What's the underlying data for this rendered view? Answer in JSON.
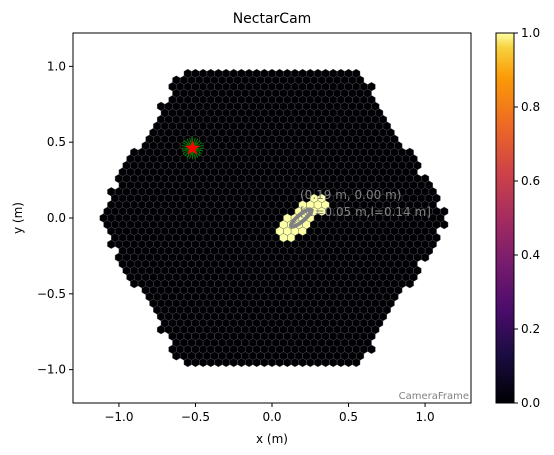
{
  "chart_data": [
    {
      "type": "heatmap",
      "title": "NectarCam",
      "xlabel": "x  (m)",
      "ylabel": "y  (m)",
      "xlim": [
        -1.3,
        1.3
      ],
      "ylim": [
        -1.22,
        1.22
      ],
      "xticks": [
        {
          "value": -1.0,
          "label": "−1.0"
        },
        {
          "value": -0.5,
          "label": "−0.5"
        },
        {
          "value": 0.0,
          "label": "0.0"
        },
        {
          "value": 0.5,
          "label": "0.5"
        },
        {
          "value": 1.0,
          "label": "1.0"
        }
      ],
      "yticks": [
        {
          "value": -1.0,
          "label": "−1.0"
        },
        {
          "value": -0.5,
          "label": "−0.5"
        },
        {
          "value": 0.0,
          "label": "0.0"
        },
        {
          "value": 0.5,
          "label": "0.5"
        },
        {
          "value": 1.0,
          "label": "1.0"
        }
      ],
      "camera": {
        "shape": "hexagonal pixel array",
        "outer_radius_m": 1.15,
        "pixel_pitch_m": 0.05,
        "background_value": 0.0,
        "signal_value": 1.0,
        "signal_region": {
          "center_m": [
            0.19,
            0.0
          ],
          "length_m": 0.14,
          "width_m": 0.05,
          "angle_deg": 40
        }
      },
      "hillas_ellipse": {
        "center_m": [
          0.19,
          0.0
        ],
        "width_m": 0.05,
        "length_m": 0.14,
        "angle_deg": 40,
        "color": "#808080"
      },
      "annotation_lines": [
        "(0.19 m, 0.00 m)",
        "[w=0.05 m,l=0.14 m]"
      ],
      "markers": [
        {
          "name": "star",
          "x": -0.52,
          "y": 0.46,
          "color": "#ff0000"
        },
        {
          "name": "green burst",
          "x": -0.52,
          "y": 0.46,
          "color": "#008000"
        }
      ],
      "frame_label": "CameraFrame",
      "grid": false,
      "colorbar": {
        "min": 0.0,
        "max": 1.0,
        "colormap": "inferno",
        "ticks": [
          {
            "value": 0.0,
            "label": "0.0"
          },
          {
            "value": 0.2,
            "label": "0.2"
          },
          {
            "value": 0.4,
            "label": "0.4"
          },
          {
            "value": 0.6,
            "label": "0.6"
          },
          {
            "value": 0.8,
            "label": "0.8"
          },
          {
            "value": 1.0,
            "label": "1.0"
          }
        ]
      },
      "colors": {
        "pixel_low": "#000004",
        "pixel_high": "#fcffa4",
        "pixel_edge": "#555555"
      }
    }
  ]
}
